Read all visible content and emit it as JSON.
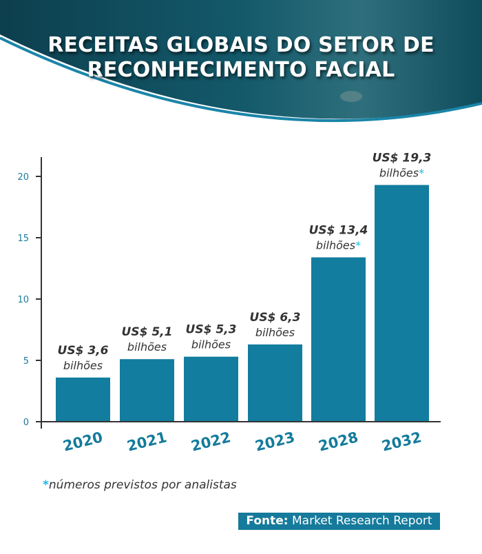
{
  "header": {
    "title_line1": "RECEITAS GLOBAIS DO SETOR DE",
    "title_line2": "RECONHECIMENTO FACIAL"
  },
  "colors": {
    "bar": "#127d9e",
    "accent": "#18b8e8",
    "header_bg": "#0f4c5c"
  },
  "chart_data": {
    "type": "bar",
    "categories": [
      "2020",
      "2021",
      "2022",
      "2023",
      "2028",
      "2032"
    ],
    "values": [
      3.6,
      5.1,
      5.3,
      6.3,
      13.4,
      19.3
    ],
    "value_labels": [
      "US$ 3,6",
      "US$ 5,1",
      "US$ 5,3",
      "US$ 6,3",
      "US$ 13,4",
      "US$ 19,3"
    ],
    "unit_label": "bilhões",
    "forecast": [
      false,
      false,
      false,
      false,
      true,
      true
    ],
    "forecast_marker": "*",
    "yticks": [
      "0",
      "5",
      "10",
      "15",
      "20"
    ],
    "ylim": [
      0,
      21
    ],
    "grid": false
  },
  "footnote": {
    "marker": "*",
    "text": "números previstos por analistas"
  },
  "source": {
    "label": "Fonte:",
    "text": "Market Research Report"
  }
}
